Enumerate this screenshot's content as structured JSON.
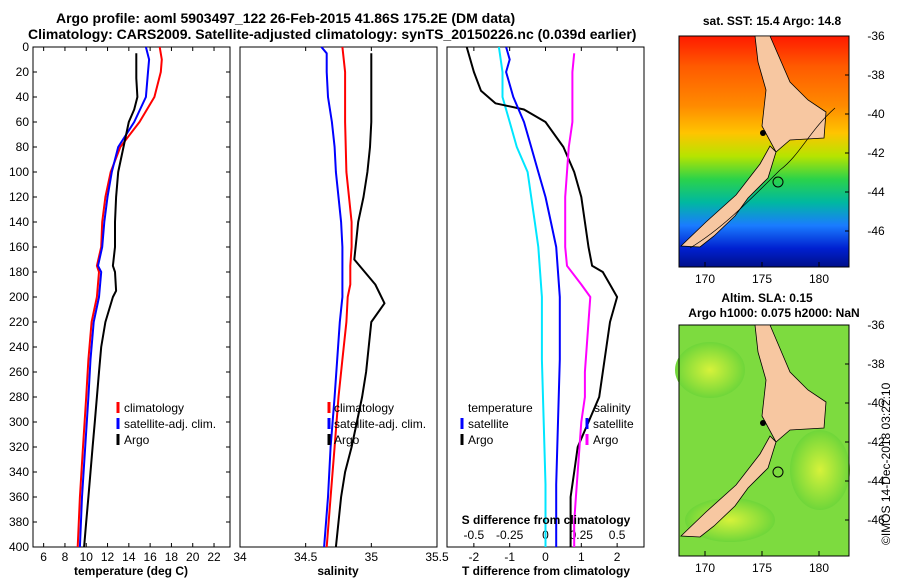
{
  "title": {
    "line1": "Argo profile: aoml 5903497_122 26-Feb-2015 41.86S 175.2E (DM data)",
    "line2": "Climatology: CARS2009. Satellite-adjusted climatology: synTS_20150226.nc (0.039d earlier)"
  },
  "colors": {
    "climatology": "#ff0000",
    "satellite": "#0000ff",
    "argo": "#000000",
    "sat_t_diff": "#00e6ff",
    "sat_s_diff": "#ff00ff"
  },
  "depth_axis": {
    "range": [
      0,
      400
    ],
    "ticks": [
      0,
      20,
      40,
      60,
      80,
      100,
      120,
      140,
      160,
      180,
      200,
      220,
      240,
      260,
      280,
      300,
      320,
      340,
      360,
      380,
      400
    ]
  },
  "chart_data": [
    {
      "type": "line",
      "title": "",
      "xlabel": "temperature (deg C)",
      "ylabel": "depth",
      "xlim": [
        5,
        23.5
      ],
      "ylim": [
        400,
        0
      ],
      "xticks": [
        6,
        8,
        10,
        12,
        14,
        16,
        18,
        20,
        22
      ],
      "legend": {
        "position": "lower-right",
        "entries": [
          "climatology",
          "satellite-adj. clim.",
          "Argo"
        ]
      },
      "series": [
        {
          "name": "climatology",
          "color": "#ff0000",
          "points": [
            [
              16.9,
              0
            ],
            [
              17.1,
              10
            ],
            [
              17.0,
              20
            ],
            [
              16.4,
              40
            ],
            [
              15.0,
              60
            ],
            [
              13.2,
              80
            ],
            [
              12.3,
              100
            ],
            [
              11.8,
              120
            ],
            [
              11.5,
              140
            ],
            [
              11.4,
              160
            ],
            [
              11.0,
              175
            ],
            [
              11.2,
              180
            ],
            [
              11.0,
              200
            ],
            [
              10.5,
              220
            ],
            [
              10.2,
              250
            ],
            [
              10.0,
              280
            ],
            [
              9.7,
              320
            ],
            [
              9.4,
              360
            ],
            [
              9.2,
              400
            ]
          ]
        },
        {
          "name": "satellite-adj. clim.",
          "color": "#0000ff",
          "points": [
            [
              15.6,
              0
            ],
            [
              15.9,
              10
            ],
            [
              15.8,
              20
            ],
            [
              15.6,
              40
            ],
            [
              14.5,
              60
            ],
            [
              13.0,
              80
            ],
            [
              12.4,
              100
            ],
            [
              12.0,
              120
            ],
            [
              11.7,
              140
            ],
            [
              11.5,
              160
            ],
            [
              11.1,
              175
            ],
            [
              11.4,
              180
            ],
            [
              11.2,
              200
            ],
            [
              10.7,
              220
            ],
            [
              10.4,
              250
            ],
            [
              10.2,
              280
            ],
            [
              9.9,
              320
            ],
            [
              9.6,
              360
            ],
            [
              9.4,
              400
            ]
          ]
        },
        {
          "name": "Argo",
          "color": "#000000",
          "points": [
            [
              14.7,
              5
            ],
            [
              14.7,
              25
            ],
            [
              14.8,
              40
            ],
            [
              14.5,
              50
            ],
            [
              14.0,
              60
            ],
            [
              13.5,
              80
            ],
            [
              13.0,
              100
            ],
            [
              12.8,
              120
            ],
            [
              12.7,
              140
            ],
            [
              12.7,
              160
            ],
            [
              12.5,
              175
            ],
            [
              12.7,
              180
            ],
            [
              12.8,
              195
            ],
            [
              12.5,
              200
            ],
            [
              11.8,
              220
            ],
            [
              11.4,
              240
            ],
            [
              11.2,
              260
            ],
            [
              11.0,
              280
            ],
            [
              10.8,
              300
            ],
            [
              10.6,
              320
            ],
            [
              10.4,
              340
            ],
            [
              10.2,
              360
            ],
            [
              10.0,
              380
            ],
            [
              9.8,
              400
            ]
          ]
        }
      ]
    },
    {
      "type": "line",
      "title": "",
      "xlabel": "salinity",
      "ylabel": "",
      "xlim": [
        34,
        35.5
      ],
      "ylim": [
        400,
        0
      ],
      "xticks": [
        34,
        34.5,
        35,
        35.5
      ],
      "legend": {
        "position": "lower-right",
        "entries": [
          "climatology",
          "satellite-adj. clim.",
          "Argo"
        ]
      },
      "series": [
        {
          "name": "climatology",
          "color": "#ff0000",
          "points": [
            [
              34.78,
              0
            ],
            [
              34.8,
              20
            ],
            [
              34.8,
              60
            ],
            [
              34.81,
              100
            ],
            [
              34.83,
              120
            ],
            [
              34.85,
              140
            ],
            [
              34.85,
              160
            ],
            [
              34.84,
              175
            ],
            [
              34.84,
              190
            ],
            [
              34.82,
              200
            ],
            [
              34.81,
              220
            ],
            [
              34.78,
              250
            ],
            [
              34.75,
              280
            ],
            [
              34.72,
              320
            ],
            [
              34.69,
              360
            ],
            [
              34.66,
              400
            ]
          ]
        },
        {
          "name": "satellite-adj. clim.",
          "color": "#0000ff",
          "points": [
            [
              34.62,
              0
            ],
            [
              34.66,
              5
            ],
            [
              34.66,
              20
            ],
            [
              34.67,
              40
            ],
            [
              34.7,
              60
            ],
            [
              34.72,
              80
            ],
            [
              34.73,
              100
            ],
            [
              34.75,
              120
            ],
            [
              34.77,
              140
            ],
            [
              34.78,
              160
            ],
            [
              34.78,
              180
            ],
            [
              34.78,
              200
            ],
            [
              34.76,
              220
            ],
            [
              34.74,
              250
            ],
            [
              34.72,
              280
            ],
            [
              34.69,
              320
            ],
            [
              34.67,
              360
            ],
            [
              34.64,
              400
            ]
          ]
        },
        {
          "name": "Argo",
          "color": "#000000",
          "points": [
            [
              35.0,
              5
            ],
            [
              35.0,
              25
            ],
            [
              35.0,
              50
            ],
            [
              35.0,
              60
            ],
            [
              34.99,
              80
            ],
            [
              34.97,
              100
            ],
            [
              34.94,
              120
            ],
            [
              34.9,
              140
            ],
            [
              34.88,
              160
            ],
            [
              34.87,
              170
            ],
            [
              35.03,
              190
            ],
            [
              35.1,
              205
            ],
            [
              35.0,
              220
            ],
            [
              34.98,
              240
            ],
            [
              34.96,
              260
            ],
            [
              34.93,
              280
            ],
            [
              34.89,
              300
            ],
            [
              34.85,
              320
            ],
            [
              34.8,
              340
            ],
            [
              34.77,
              360
            ],
            [
              34.75,
              380
            ],
            [
              34.73,
              400
            ]
          ]
        }
      ]
    },
    {
      "type": "line",
      "title": "",
      "xlabel": "T difference from climatology",
      "ylabel": "",
      "xlim": [
        -2.75,
        2.75
      ],
      "ylim": [
        400,
        0
      ],
      "xticks": [
        -2,
        -1,
        0,
        1,
        2
      ],
      "secondary_xlabel": "S difference from climatology",
      "secondary_xticks": [
        "-0.5",
        "-0.25",
        "0",
        "0.25",
        "0.5"
      ],
      "legend": {
        "position": "lower-left / lower-right",
        "temperature_title": "temperature",
        "salinity_title": "salinity",
        "entries": [
          "satellite",
          "Argo"
        ]
      },
      "series": [
        {
          "name": "temperature satellite",
          "color": "#00e6ff",
          "points": [
            [
              -1.3,
              0
            ],
            [
              -1.2,
              20
            ],
            [
              -1.2,
              40
            ],
            [
              -1.0,
              60
            ],
            [
              -0.8,
              80
            ],
            [
              -0.5,
              100
            ],
            [
              -0.4,
              120
            ],
            [
              -0.3,
              140
            ],
            [
              -0.2,
              160
            ],
            [
              -0.15,
              180
            ],
            [
              -0.1,
              200
            ],
            [
              -0.1,
              250
            ],
            [
              -0.05,
              300
            ],
            [
              0.0,
              350
            ],
            [
              0.0,
              400
            ]
          ]
        },
        {
          "name": "temperature Argo",
          "color": "#000000",
          "points": [
            [
              -2.2,
              0
            ],
            [
              -2.0,
              20
            ],
            [
              -1.8,
              35
            ],
            [
              -1.4,
              45
            ],
            [
              -0.6,
              50
            ],
            [
              0.0,
              60
            ],
            [
              0.5,
              80
            ],
            [
              0.8,
              100
            ],
            [
              1.0,
              120
            ],
            [
              1.1,
              140
            ],
            [
              1.2,
              160
            ],
            [
              1.3,
              175
            ],
            [
              1.6,
              180
            ],
            [
              1.8,
              190
            ],
            [
              2.0,
              200
            ],
            [
              1.8,
              220
            ],
            [
              1.7,
              240
            ],
            [
              1.6,
              260
            ],
            [
              1.5,
              280
            ],
            [
              1.2,
              300
            ],
            [
              0.9,
              320
            ],
            [
              0.8,
              340
            ],
            [
              0.7,
              360
            ],
            [
              0.7,
              380
            ],
            [
              0.7,
              400
            ]
          ]
        },
        {
          "name": "salinity satellite",
          "color": "#0000ff",
          "points": [
            [
              -1.1,
              0
            ],
            [
              -1.0,
              10
            ],
            [
              -1.1,
              20
            ],
            [
              -0.9,
              40
            ],
            [
              -0.6,
              60
            ],
            [
              -0.4,
              80
            ],
            [
              -0.2,
              100
            ],
            [
              0.0,
              120
            ],
            [
              0.15,
              140
            ],
            [
              0.3,
              160
            ],
            [
              0.35,
              180
            ],
            [
              0.4,
              200
            ],
            [
              0.4,
              250
            ],
            [
              0.35,
              300
            ],
            [
              0.3,
              350
            ],
            [
              0.3,
              400
            ]
          ]
        },
        {
          "name": "salinity Argo",
          "color": "#ff00ff",
          "points": [
            [
              0.8,
              5
            ],
            [
              0.75,
              20
            ],
            [
              0.75,
              28
            ],
            [
              0.75,
              52
            ],
            [
              0.75,
              60
            ],
            [
              0.65,
              80
            ],
            [
              0.6,
              100
            ],
            [
              0.55,
              120
            ],
            [
              0.55,
              140
            ],
            [
              0.55,
              160
            ],
            [
              0.6,
              175
            ],
            [
              1.0,
              190
            ],
            [
              1.25,
              200
            ],
            [
              1.2,
              220
            ],
            [
              1.15,
              240
            ],
            [
              1.1,
              260
            ],
            [
              1.1,
              280
            ],
            [
              1.0,
              300
            ],
            [
              0.95,
              320
            ],
            [
              0.9,
              340
            ],
            [
              0.85,
              360
            ],
            [
              0.8,
              380
            ],
            [
              0.8,
              400
            ]
          ]
        }
      ]
    }
  ],
  "maps": {
    "sst": {
      "title": "sat. SST: 15.4 Argo: 14.8",
      "lon_ticks": [
        "170",
        "175",
        "180"
      ],
      "lat_ticks": [
        "-36",
        "-38",
        "-40",
        "-42",
        "-44",
        "-46"
      ]
    },
    "sla": {
      "title_line1": "Altim. SLA: 0.15",
      "title_line2": "Argo h1000: 0.075 h2000: NaN",
      "lon_ticks": [
        "170",
        "175",
        "180"
      ],
      "lat_ticks": [
        "-36",
        "-38",
        "-40",
        "-42",
        "-44",
        "-46"
      ]
    }
  },
  "watermark": "©IMOS 14-Dec-2018 03:22:10"
}
